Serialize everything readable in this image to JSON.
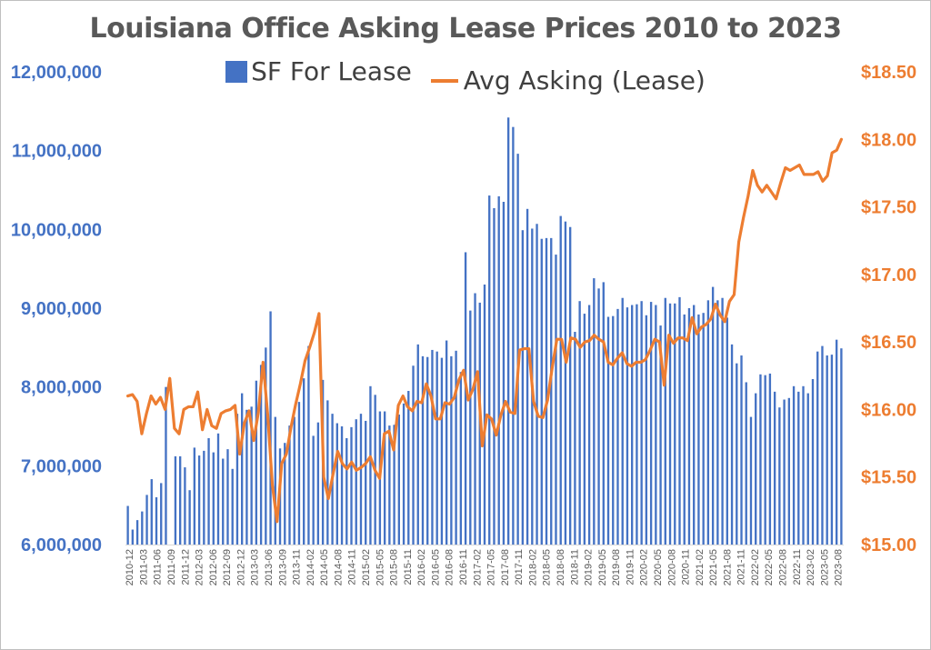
{
  "chart_data": {
    "type": "bar+line",
    "title": "Louisiana Office Asking Lease Prices 2010 to 2023",
    "legend_position": "top",
    "grid": false,
    "colors": {
      "bars": "#4472c4",
      "line": "#ed7d31",
      "left_axis_text": "#4472c4",
      "right_axis_text": "#ed7d31",
      "title": "#595959"
    },
    "x_tick_labels": [
      "2010-12",
      "2011-03",
      "2011-06",
      "2011-09",
      "2011-12",
      "2012-03",
      "2012-06",
      "2012-09",
      "2012-12",
      "2013-03",
      "2013-06",
      "2013-09",
      "2013-11",
      "2014-02",
      "2014-05",
      "2014-08",
      "2014-11",
      "2015-02",
      "2015-05",
      "2015-08",
      "2015-11",
      "2016-02",
      "2016-05",
      "2016-08",
      "2016-11",
      "2017-02",
      "2017-05",
      "2017-08",
      "2017-11",
      "2018-02",
      "2018-05",
      "2018-08",
      "2018-11",
      "2019-02",
      "2019-05",
      "2019-08",
      "2019-11",
      "2020-02",
      "2020-05",
      "2020-08",
      "2020-11",
      "2021-02",
      "2021-05",
      "2021-08",
      "2021-11",
      "2022-02",
      "2022-05",
      "2022-08",
      "2022-11",
      "2023-02",
      "2023-05",
      "2023-08"
    ],
    "y_left": {
      "ticks": [
        "6,000,000",
        "7,000,000",
        "8,000,000",
        "9,000,000",
        "10,000,000",
        "11,000,000",
        "12,000,000"
      ],
      "range": [
        6000000,
        12000000
      ]
    },
    "y_right": {
      "ticks": [
        "$15.00",
        "$15.50",
        "$16.00",
        "$16.50",
        "$17.00",
        "$17.50",
        "$18.00",
        "$18.50"
      ],
      "range": [
        15.0,
        18.5
      ]
    },
    "series": [
      {
        "name": "SF For Lease",
        "kind": "bar",
        "values": [
          6490000,
          6190000,
          6310000,
          6420000,
          6630000,
          6830000,
          6600000,
          6780000,
          8000000,
          6000000,
          7120000,
          7120000,
          6980000,
          6690000,
          7230000,
          7130000,
          7190000,
          7350000,
          7170000,
          7410000,
          7090000,
          7210000,
          6960000,
          7660000,
          7920000,
          7710000,
          7750000,
          8080000,
          8280000,
          8500000,
          8960000,
          7620000,
          7220000,
          7290000,
          7510000,
          7620000,
          7810000,
          8110000,
          8520000,
          7380000,
          7550000,
          8090000,
          7830000,
          7660000,
          7540000,
          7500000,
          7350000,
          7490000,
          7590000,
          7660000,
          7570000,
          8010000,
          7900000,
          7690000,
          7690000,
          7510000,
          7520000,
          7650000,
          7790000,
          7950000,
          8270000,
          8540000,
          8390000,
          8380000,
          8470000,
          8450000,
          8370000,
          8590000,
          8390000,
          8460000,
          8190000,
          9710000,
          8970000,
          9190000,
          9070000,
          9300000,
          10430000,
          10270000,
          10420000,
          10350000,
          11420000,
          11300000,
          10960000,
          9990000,
          10260000,
          10010000,
          10070000,
          9880000,
          9890000,
          9890000,
          9680000,
          10170000,
          10100000,
          10030000,
          8700000,
          9090000,
          8930000,
          9040000,
          9380000,
          9250000,
          9330000,
          8890000,
          8900000,
          8990000,
          9130000,
          9010000,
          9040000,
          9050000,
          9090000,
          8910000,
          9080000,
          9040000,
          8780000,
          9130000,
          9060000,
          9060000,
          9140000,
          8920000,
          9000000,
          9040000,
          8920000,
          8940000,
          9100000,
          9270000,
          9100000,
          9130000,
          8880000,
          8540000,
          8300000,
          8400000,
          8060000,
          7620000,
          7920000,
          8160000,
          8150000,
          8170000,
          7940000,
          7740000,
          7840000,
          7860000,
          8010000,
          7940000,
          8010000,
          7920000,
          8100000,
          8450000,
          8520000,
          8400000,
          8410000,
          8600000,
          8490000
        ]
      },
      {
        "name": "Avg Asking (Lease)",
        "kind": "line",
        "values": [
          16.1,
          16.11,
          16.06,
          15.82,
          15.97,
          16.1,
          16.04,
          16.09,
          16.0,
          16.23,
          15.86,
          15.82,
          16.0,
          16.02,
          16.02,
          16.13,
          15.85,
          16.0,
          15.88,
          15.86,
          15.97,
          15.99,
          16.0,
          16.03,
          15.67,
          15.9,
          15.99,
          15.77,
          15.98,
          16.35,
          15.96,
          15.44,
          15.17,
          15.6,
          15.67,
          15.87,
          16.04,
          16.19,
          16.36,
          16.46,
          16.57,
          16.71,
          15.5,
          15.34,
          15.52,
          15.69,
          15.6,
          15.56,
          15.61,
          15.55,
          15.57,
          15.6,
          15.65,
          15.55,
          15.49,
          15.82,
          15.84,
          15.7,
          16.03,
          16.1,
          16.02,
          15.99,
          16.06,
          16.05,
          16.19,
          16.1,
          15.93,
          15.93,
          16.05,
          16.04,
          16.09,
          16.22,
          16.29,
          16.07,
          16.15,
          16.28,
          15.73,
          15.96,
          15.93,
          15.81,
          15.96,
          16.06,
          15.98,
          15.97,
          16.44,
          16.45,
          16.45,
          16.06,
          15.95,
          15.94,
          16.07,
          16.31,
          16.52,
          16.52,
          16.35,
          16.53,
          16.52,
          16.46,
          16.5,
          16.51,
          16.55,
          16.52,
          16.5,
          16.35,
          16.33,
          16.38,
          16.42,
          16.34,
          16.32,
          16.35,
          16.35,
          16.37,
          16.44,
          16.52,
          16.5,
          16.18,
          16.55,
          16.49,
          16.53,
          16.53,
          16.51,
          16.68,
          16.56,
          16.61,
          16.63,
          16.67,
          16.78,
          16.7,
          16.65,
          16.8,
          16.85,
          17.24,
          17.42,
          17.58,
          17.77,
          17.66,
          17.61,
          17.66,
          17.61,
          17.56,
          17.68,
          17.79,
          17.77,
          17.79,
          17.81,
          17.74,
          17.74,
          17.74,
          17.76,
          17.69,
          17.73,
          17.9,
          17.92,
          18.0
        ]
      }
    ]
  }
}
